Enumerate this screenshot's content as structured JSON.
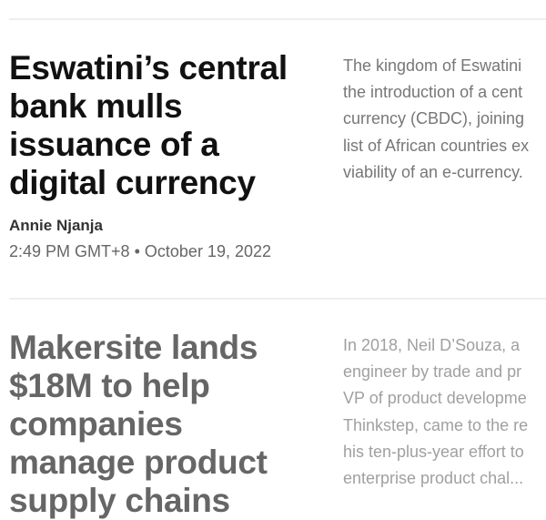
{
  "articles": [
    {
      "headline_lines": [
        "Eswatini’s central",
        "bank mulls",
        "issuance of a",
        "digital currency"
      ],
      "author": "Annie Njanja",
      "time": "2:49 PM GMT+8",
      "separator": "•",
      "date": "October 19, 2022",
      "excerpt_lines": [
        "The kingdom of Eswatini",
        "the introduction of a cent",
        "currency (CBDC), joining",
        "list of African countries ex",
        "viability of an e-currency."
      ]
    },
    {
      "headline_lines": [
        "Makersite lands",
        "$18M to help",
        "companies",
        "manage product",
        "supply chains"
      ],
      "excerpt_lines": [
        "In 2018, Neil D’Souza, a",
        "engineer by trade and pr",
        "VP of product developme",
        "Thinkstep, came to the re",
        "his ten-plus-year effort to",
        "enterprise product chal..."
      ]
    }
  ]
}
